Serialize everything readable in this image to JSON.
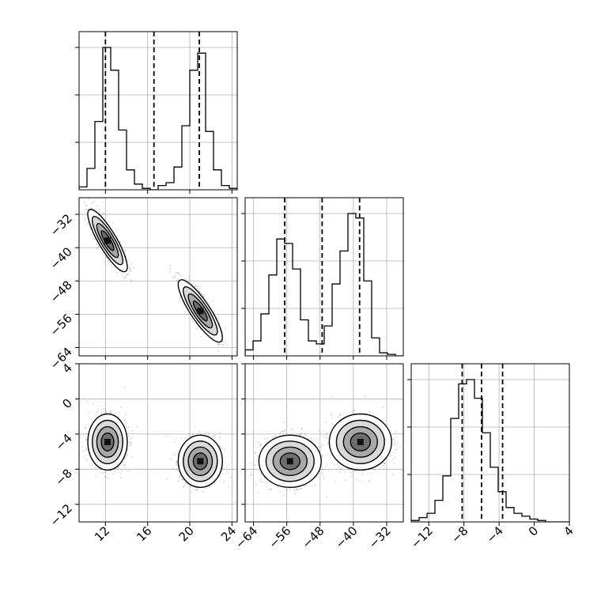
{
  "chart_data": {
    "type": "corner",
    "grid": true,
    "parameters": [
      {
        "range": [
          9.5,
          24.5
        ],
        "ticks": [
          12,
          16,
          20,
          24
        ],
        "tick_labels": [
          "12",
          "16",
          "20",
          "24"
        ],
        "quantiles": [
          12.0,
          16.6,
          20.9
        ]
      },
      {
        "range": [
          -66,
          -28
        ],
        "ticks": [
          -64,
          -56,
          -48,
          -40,
          -32
        ],
        "tick_labels": [
          "−64",
          "−56",
          "−48",
          "−40",
          "−32"
        ],
        "quantiles": [
          -56.5,
          -47.5,
          -38.5
        ]
      },
      {
        "range": [
          -14,
          4
        ],
        "ticks": [
          -12,
          -8,
          -4,
          0,
          4
        ],
        "tick_labels": [
          "−12",
          "−8",
          "−4",
          "0",
          "4"
        ],
        "quantiles": [
          -8.2,
          -6.0,
          -3.6
        ]
      }
    ],
    "histograms": [
      {
        "param": 0,
        "bin_start": 9.5,
        "bin_width": 0.75,
        "counts": [
          2,
          15,
          48,
          100,
          84,
          42,
          14,
          4,
          1,
          0,
          3,
          5,
          16,
          45,
          84,
          96,
          41,
          14,
          3,
          1
        ]
      },
      {
        "param": 1,
        "bin_start": -66,
        "bin_width": 1.9,
        "counts": [
          4,
          10,
          28,
          54,
          78,
          75,
          58,
          24,
          10,
          8,
          20,
          48,
          70,
          95,
          92,
          50,
          12,
          2,
          1,
          0
        ]
      },
      {
        "param": 2,
        "bin_start": -14,
        "bin_width": 0.9,
        "counts": [
          1,
          3,
          6,
          15,
          32,
          72,
          96,
          99,
          86,
          62,
          38,
          21,
          10,
          6,
          4,
          2,
          1,
          0,
          0,
          0
        ]
      }
    ],
    "clusters": [
      {
        "mean": [
          12.2,
          -38.3,
          -4.9
        ],
        "sd": [
          0.85,
          3.4,
          1.45
        ],
        "rho01": -0.85,
        "weight": 0.5
      },
      {
        "mean": [
          21.0,
          -55.2,
          -7.1
        ],
        "sd": [
          0.95,
          3.4,
          1.35
        ],
        "rho01": -0.85,
        "weight": 0.5
      }
    ],
    "layout": [
      {
        "cell": "hist",
        "row": 0,
        "col": 0,
        "x": 0
      },
      {
        "cell": "2d",
        "row": 1,
        "col": 0,
        "x": 0,
        "y": 1
      },
      {
        "cell": "hist",
        "row": 1,
        "col": 1,
        "x": 1
      },
      {
        "cell": "2d",
        "row": 2,
        "col": 0,
        "x": 0,
        "y": 2
      },
      {
        "cell": "2d",
        "row": 2,
        "col": 1,
        "x": 1,
        "y": 2
      },
      {
        "cell": "hist",
        "row": 2,
        "col": 2,
        "x": 2
      }
    ]
  }
}
